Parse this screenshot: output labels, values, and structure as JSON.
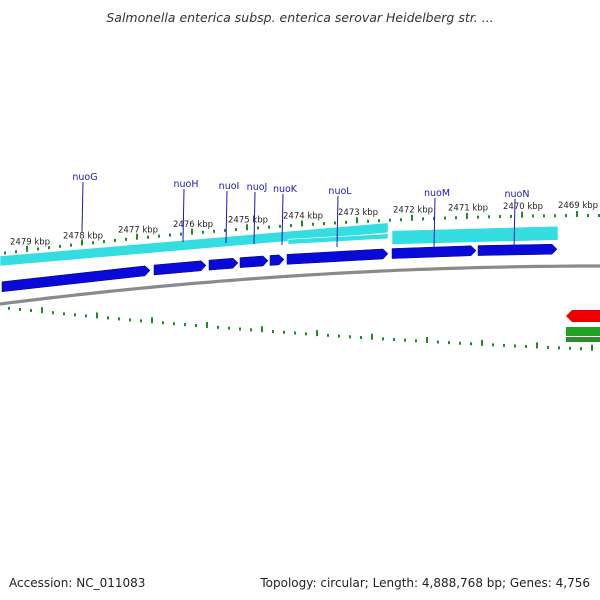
{
  "title": "Salmonella enterica subsp. enterica serovar Heidelberg str. ...",
  "footer": {
    "accession": "Accession: NC_011083",
    "summary": "Topology: circular; Length: 4,888,768 bp; Genes: 4,756"
  },
  "colors": {
    "tick": "#1e8c1e",
    "cds_blue": "#0a0ad8",
    "cyan_band": "#33dde0",
    "backbone": "#8a8a8a",
    "gene_label": "#1a1ab8",
    "red_feature": "#ee0000",
    "green_feature": "#22a022"
  },
  "scale_labels": [
    "2479 kbp",
    "2478 kbp",
    "2477 kbp",
    "2476 kbp",
    "2475 kbp",
    "2474 kbp",
    "2473 kbp",
    "2472 kbp",
    "2471 kbp",
    "2470 kbp",
    "2469 kbp"
  ],
  "genes": [
    "nuoG",
    "nuoH",
    "nuoI",
    "nuoJ",
    "nuoK",
    "nuoL",
    "nuoM",
    "nuoN"
  ]
}
